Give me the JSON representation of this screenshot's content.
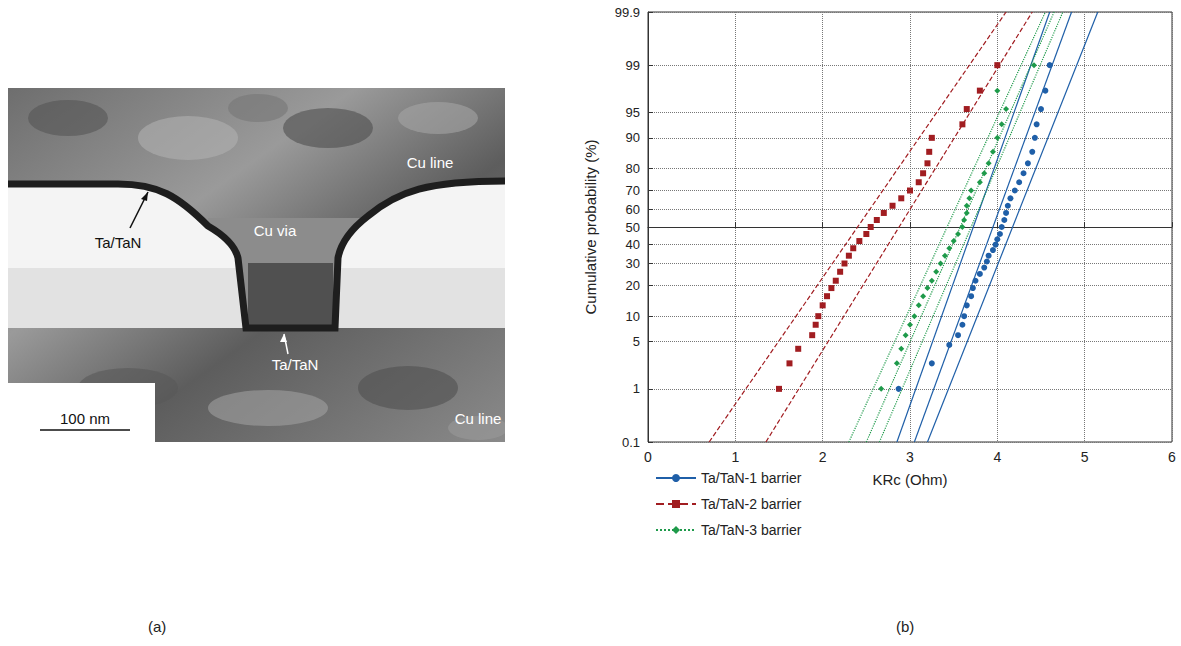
{
  "panel_labels": [
    "(a)",
    "(b)"
  ],
  "image": {
    "labels": {
      "upper_line": "Cu line",
      "via": "Cu via",
      "upper_barrier": "Ta/TaN",
      "lower_barrier": "Ta/TaN",
      "lower_line": "Cu line"
    },
    "scale_bar": "100 nm"
  },
  "chart_data": {
    "type": "scatter",
    "x_label": "KRc (Ohm)",
    "y_label": "Cumulative probability (%)",
    "xlim": [
      0,
      6
    ],
    "xticks": [
      0,
      1,
      2,
      3,
      4,
      5,
      6
    ],
    "ylim": [
      0.1,
      99.9
    ],
    "yticks": [
      0.1,
      1,
      5,
      10,
      20,
      30,
      40,
      50,
      60,
      70,
      80,
      90,
      95,
      99,
      99.9
    ],
    "grid": true,
    "legend": "bottom",
    "fit_probabilities": [
      0.1,
      99.9
    ],
    "series": [
      {
        "name": "Ta/TaN-1 barrier",
        "color": "#1f5fa8",
        "marker": "circle",
        "line_style": "solid",
        "x": [
          2.87,
          3.25,
          3.45,
          3.55,
          3.6,
          3.62,
          3.65,
          3.7,
          3.72,
          3.75,
          3.8,
          3.85,
          3.88,
          3.9,
          3.95,
          3.98,
          4.0,
          4.03,
          4.05,
          4.08,
          4.1,
          4.12,
          4.15,
          4.2,
          4.25,
          4.3,
          4.35,
          4.4,
          4.43,
          4.45,
          4.5,
          4.55,
          4.6
        ],
        "values": [
          1,
          2.5,
          4.5,
          6,
          8,
          10,
          13,
          16,
          19,
          22,
          25,
          28,
          31,
          34,
          37,
          40,
          43,
          46,
          50,
          54,
          58,
          62,
          66,
          70,
          74,
          78,
          82,
          86,
          90,
          93,
          95.5,
          97.5,
          99
        ],
        "fit_lines": [
          [
            2.85,
            4.6
          ],
          [
            3.05,
            4.85
          ],
          [
            3.2,
            5.15
          ]
        ]
      },
      {
        "name": "Ta/TaN-2 barrier",
        "color": "#a11d21",
        "marker": "square",
        "line_style": "dashed",
        "x": [
          1.5,
          1.62,
          1.72,
          1.88,
          1.92,
          1.95,
          2.0,
          2.05,
          2.1,
          2.15,
          2.2,
          2.25,
          2.3,
          2.35,
          2.42,
          2.5,
          2.55,
          2.62,
          2.7,
          2.8,
          2.9,
          3.0,
          3.1,
          3.15,
          3.2,
          3.22,
          3.25,
          3.6,
          3.65,
          3.8,
          4.0
        ],
        "values": [
          1,
          2.5,
          4,
          6,
          8,
          10,
          13,
          16,
          19,
          22,
          26,
          30,
          34,
          38,
          42,
          46,
          50,
          54,
          58,
          62,
          66,
          70,
          74,
          78,
          82,
          86,
          90,
          93,
          95.5,
          97.5,
          99
        ],
        "fit_lines": [
          [
            0.7,
            4.1
          ],
          [
            1.35,
            4.4
          ]
        ]
      },
      {
        "name": "Ta/TaN-3 barrier",
        "color": "#1e9a4a",
        "marker": "diamond",
        "line_style": "dotted",
        "x": [
          2.67,
          2.85,
          2.9,
          2.95,
          3.0,
          3.05,
          3.1,
          3.15,
          3.2,
          3.25,
          3.3,
          3.35,
          3.4,
          3.45,
          3.5,
          3.55,
          3.6,
          3.62,
          3.65,
          3.65,
          3.68,
          3.7,
          3.8,
          3.85,
          3.9,
          3.95,
          4.0,
          4.05,
          4.1,
          4.0,
          4.42
        ],
        "values": [
          1,
          2.5,
          4,
          6,
          8,
          10,
          13,
          16,
          19,
          22,
          26,
          30,
          34,
          38,
          42,
          46,
          50,
          54,
          58,
          62,
          66,
          70,
          74,
          78,
          82,
          86,
          90,
          93,
          95.5,
          97.5,
          99
        ],
        "fit_lines": [
          [
            2.3,
            4.55
          ],
          [
            2.5,
            4.65
          ],
          [
            2.65,
            4.75
          ]
        ]
      }
    ]
  }
}
